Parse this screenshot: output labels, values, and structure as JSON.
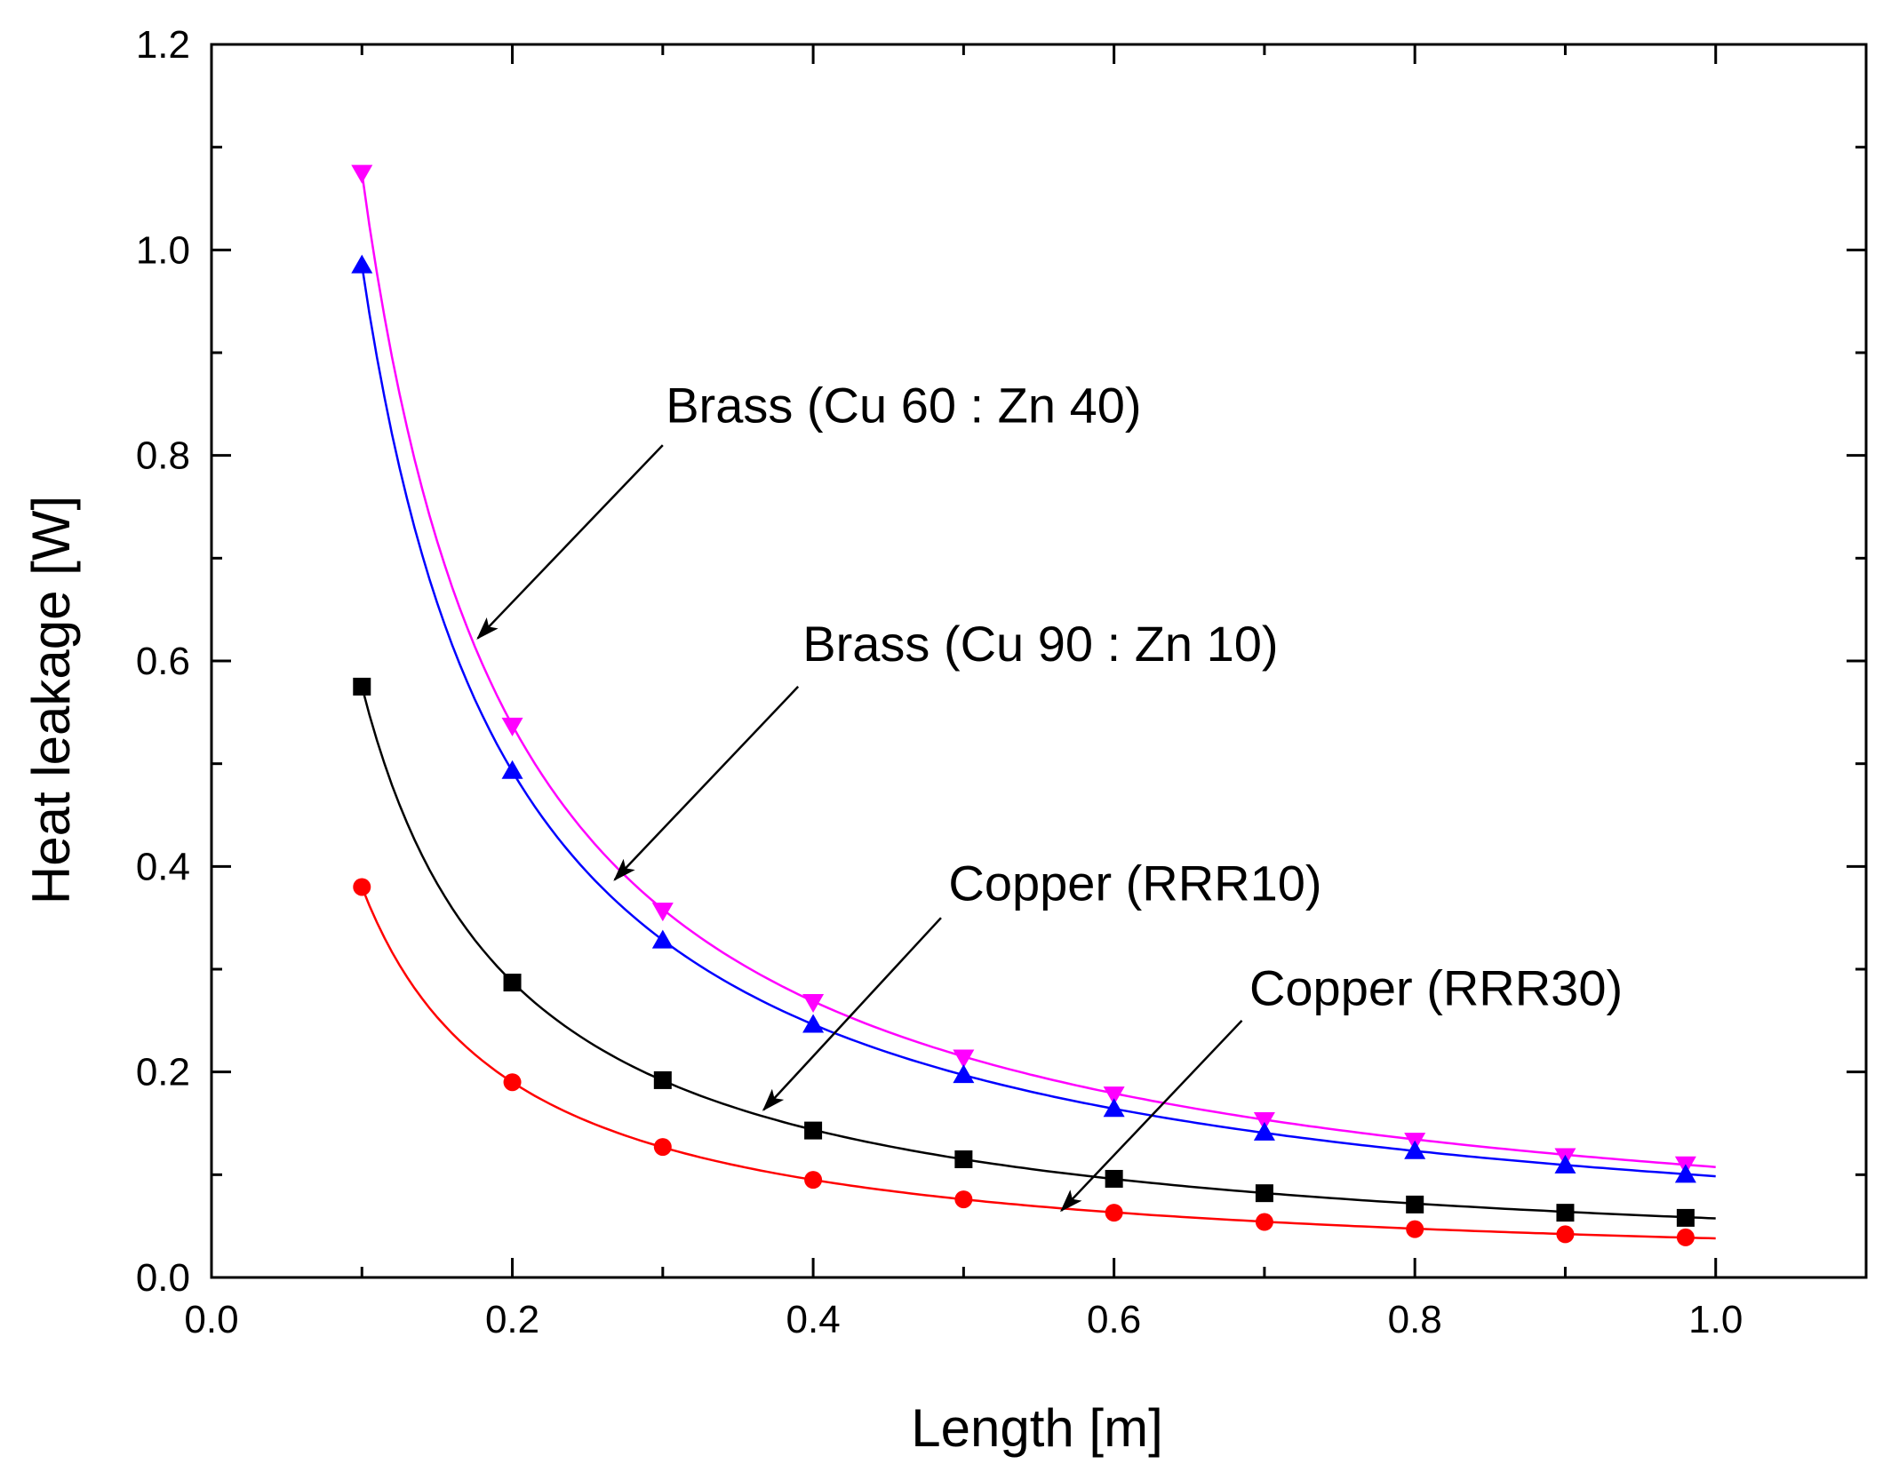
{
  "chart_data": {
    "type": "line",
    "title": "",
    "xlabel": "Length [m]",
    "ylabel": "Heat leakage [W]",
    "xlim": [
      0.0,
      1.1
    ],
    "ylim": [
      0.0,
      1.2
    ],
    "x_ticks": [
      0.0,
      0.2,
      0.4,
      0.6,
      0.8,
      1.0
    ],
    "x_tick_labels": [
      "0.0",
      "0.2",
      "0.4",
      "0.6",
      "0.8",
      "1.0"
    ],
    "y_ticks": [
      0.0,
      0.2,
      0.4,
      0.6,
      0.8,
      1.0,
      1.2
    ],
    "y_tick_labels": [
      "0.0",
      "0.2",
      "0.4",
      "0.6",
      "0.8",
      "1.0",
      "1.2"
    ],
    "grid": false,
    "legend": "none",
    "series": [
      {
        "name": "Brass (Cu 60 : Zn 40)",
        "color": "#ff00ff",
        "marker": "triangle-down",
        "curve_k": 0.1075,
        "x": [
          0.1,
          0.2,
          0.3,
          0.4,
          0.5,
          0.6,
          0.7,
          0.8,
          0.9,
          0.98
        ],
        "y": [
          1.075,
          0.537,
          0.357,
          0.268,
          0.214,
          0.178,
          0.153,
          0.133,
          0.118,
          0.11
        ]
      },
      {
        "name": "Brass (Cu 90 : Zn 10)",
        "color": "#0000ff",
        "marker": "triangle-up",
        "curve_k": 0.0985,
        "x": [
          0.1,
          0.2,
          0.3,
          0.4,
          0.5,
          0.6,
          0.7,
          0.8,
          0.9,
          0.98
        ],
        "y": [
          0.985,
          0.493,
          0.328,
          0.246,
          0.197,
          0.164,
          0.141,
          0.123,
          0.109,
          0.1
        ]
      },
      {
        "name": "Copper (RRR10)",
        "color": "#000000",
        "marker": "square",
        "curve_k": 0.0575,
        "x": [
          0.1,
          0.2,
          0.3,
          0.4,
          0.5,
          0.6,
          0.7,
          0.8,
          0.9,
          0.98
        ],
        "y": [
          0.575,
          0.287,
          0.192,
          0.143,
          0.115,
          0.096,
          0.082,
          0.071,
          0.063,
          0.058
        ]
      },
      {
        "name": "Copper (RRR30)",
        "color": "#ff0000",
        "marker": "circle",
        "curve_k": 0.038,
        "x": [
          0.1,
          0.2,
          0.3,
          0.4,
          0.5,
          0.6,
          0.7,
          0.8,
          0.9,
          0.98
        ],
        "y": [
          0.38,
          0.19,
          0.127,
          0.095,
          0.076,
          0.063,
          0.054,
          0.047,
          0.042,
          0.039
        ]
      }
    ],
    "annotations": [
      {
        "text": "Brass (Cu 60 : Zn 40)",
        "text_at": [
          0.302,
          0.832
        ],
        "arrow_from": [
          0.3,
          0.81
        ],
        "arrow_to": [
          0.177,
          0.622
        ]
      },
      {
        "text": "Brass (Cu 90 : Zn 10)",
        "text_at": [
          0.393,
          0.6
        ],
        "arrow_from": [
          0.39,
          0.575
        ],
        "arrow_to": [
          0.268,
          0.387
        ]
      },
      {
        "text": "Copper (RRR10)",
        "text_at": [
          0.49,
          0.367
        ],
        "arrow_from": [
          0.485,
          0.35
        ],
        "arrow_to": [
          0.367,
          0.163
        ]
      },
      {
        "text": "Copper (RRR30)",
        "text_at": [
          0.69,
          0.265
        ],
        "arrow_from": [
          0.685,
          0.25
        ],
        "arrow_to": [
          0.565,
          0.065
        ]
      }
    ]
  }
}
